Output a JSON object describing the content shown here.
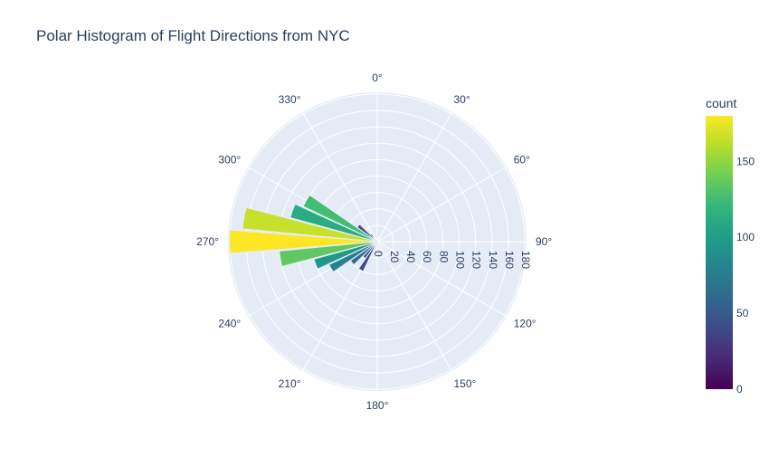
{
  "chart_data": {
    "type": "polar-bar",
    "title": "Polar Histogram of Flight Directions from NYC",
    "angular_axis": {
      "rotation": "clockwise from north",
      "ticks": [
        "0°",
        "30°",
        "60°",
        "90°",
        "120°",
        "150°",
        "180°",
        "210°",
        "240°",
        "270°",
        "300°",
        "330°"
      ]
    },
    "radial_axis": {
      "range": [
        0,
        182
      ],
      "ticks": [
        "0",
        "20",
        "40",
        "60",
        "80",
        "100",
        "120",
        "140",
        "160",
        "180"
      ]
    },
    "bars": [
      {
        "theta": 270,
        "r": 180,
        "count": 180
      },
      {
        "theta": 280,
        "r": 165,
        "count": 165
      },
      {
        "theta": 290,
        "r": 110,
        "count": 110
      },
      {
        "theta": 300,
        "r": 100,
        "count": 125
      },
      {
        "theta": 310,
        "r": 30,
        "count": 42
      },
      {
        "theta": 320,
        "r": 12,
        "count": 35
      },
      {
        "theta": 200,
        "r": 5,
        "count": 30
      },
      {
        "theta": 260,
        "r": 120,
        "count": 135
      },
      {
        "theta": 250,
        "r": 80,
        "count": 95
      },
      {
        "theta": 240,
        "r": 65,
        "count": 80
      },
      {
        "theta": 230,
        "r": 40,
        "count": 62
      },
      {
        "theta": 220,
        "r": 25,
        "count": 45
      },
      {
        "theta": 210,
        "r": 40,
        "count": 40
      },
      {
        "theta": 90,
        "r": 2,
        "count": 20
      },
      {
        "theta": 180,
        "r": 4,
        "count": 15
      }
    ],
    "colorbar": {
      "title": "count",
      "min": 0,
      "max": 180,
      "ticks": [
        "0",
        "50",
        "100",
        "150"
      ],
      "colorscale": "Viridis"
    },
    "colors": {
      "paper": "#ffffff",
      "polar_bg": "#e5ecf6",
      "grid": "#ffffff",
      "text": "#2a3f5f"
    }
  }
}
